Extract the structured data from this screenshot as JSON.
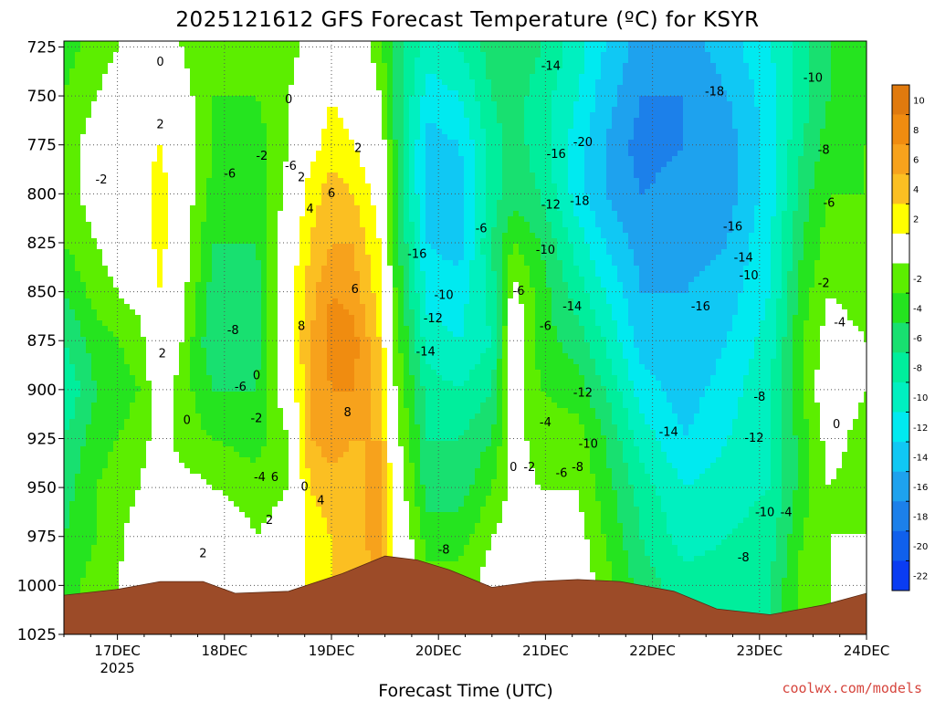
{
  "chart_data": {
    "type": "heatmap",
    "title": "2025121612 GFS Forecast Temperature (ºC) for KSYR",
    "xlabel": "Forecast Time (UTC)",
    "ylabel": "",
    "credit": "coolwx.com/models",
    "y_ticks": [
      "725",
      "750",
      "775",
      "800",
      "825",
      "850",
      "875",
      "900",
      "925",
      "950",
      "975",
      "1000",
      "1025"
    ],
    "y_values": [
      725,
      750,
      775,
      800,
      825,
      850,
      875,
      900,
      925,
      950,
      975,
      1000,
      1025
    ],
    "ylim": [
      1025,
      722
    ],
    "x_ticks": [
      "17DEC",
      "18DEC",
      "19DEC",
      "20DEC",
      "21DEC",
      "22DEC",
      "23DEC",
      "24DEC"
    ],
    "x_values": [
      0.5,
      1.5,
      2.5,
      3.5,
      4.5,
      5.5,
      6.5,
      7.5
    ],
    "x_year_label": "2025",
    "xlim": [
      0,
      7.5
    ],
    "colorbar": {
      "tick_labels": [
        "10",
        "8",
        "6",
        "4",
        "2",
        "-2",
        "-4",
        "-6",
        "-8",
        "-10",
        "-12",
        "-14",
        "-16",
        "-18",
        "-20",
        "-22"
      ],
      "tick_values": [
        10,
        8,
        6,
        4,
        2,
        -2,
        -4,
        -6,
        -8,
        -10,
        -12,
        -14,
        -16,
        -18,
        -20,
        -22
      ],
      "bands": [
        {
          "min": 10,
          "max": 12,
          "color": "#e07a0e"
        },
        {
          "min": 8,
          "max": 10,
          "color": "#f08c10"
        },
        {
          "min": 6,
          "max": 8,
          "color": "#f7a21c"
        },
        {
          "min": 4,
          "max": 6,
          "color": "#fbbf22"
        },
        {
          "min": 2,
          "max": 4,
          "color": "#ffff00"
        },
        {
          "min": -2,
          "max": 2,
          "color": "#ffffff"
        },
        {
          "min": -4,
          "max": -2,
          "color": "#5cee00"
        },
        {
          "min": -6,
          "max": -4,
          "color": "#25e41f"
        },
        {
          "min": -8,
          "max": -6,
          "color": "#18e070"
        },
        {
          "min": -10,
          "max": -8,
          "color": "#00ee9c"
        },
        {
          "min": -12,
          "max": -10,
          "color": "#00f0c0"
        },
        {
          "min": -14,
          "max": -12,
          "color": "#00eaf0"
        },
        {
          "min": -16,
          "max": -14,
          "color": "#10c8f4"
        },
        {
          "min": -18,
          "max": -16,
          "color": "#1ea2ee"
        },
        {
          "min": -20,
          "max": -18,
          "color": "#1c80ea"
        },
        {
          "min": -22,
          "max": -20,
          "color": "#1060ec"
        },
        {
          "min": -24,
          "max": -22,
          "color": "#0a3cf2"
        }
      ]
    },
    "temperature_profiles": [
      {
        "t": 0.0,
        "temps": [
          -5,
          -4,
          -3,
          -3,
          -4,
          -6,
          -8,
          -10,
          -8,
          -7,
          -6,
          -5
        ]
      },
      {
        "t": 0.3,
        "temps": [
          -3,
          -2,
          -1,
          -1,
          -2,
          -3,
          -5,
          -6,
          -5,
          -4,
          -4,
          -3
        ]
      },
      {
        "t": 0.7,
        "temps": [
          -1,
          0,
          1,
          1,
          0,
          -1,
          -3,
          -4,
          -3,
          -2,
          -1,
          -1
        ]
      },
      {
        "t": 0.9,
        "temps": [
          0,
          1,
          2,
          3,
          3,
          2,
          1,
          0,
          -1,
          0,
          1,
          0
        ]
      },
      {
        "t": 1.1,
        "temps": [
          -2,
          -1,
          0,
          0,
          -1,
          -1,
          -2,
          -3,
          -3,
          -1,
          2,
          0
        ]
      },
      {
        "t": 1.4,
        "temps": [
          -4,
          -4,
          -4,
          -5,
          -6,
          -7,
          -8,
          -6,
          -4,
          -2,
          0,
          0
        ]
      },
      {
        "t": 1.8,
        "temps": [
          -4,
          -4,
          -5,
          -6,
          -6,
          -7,
          -7,
          -6,
          -5,
          -3,
          -2,
          -1
        ]
      },
      {
        "t": 2.1,
        "temps": [
          -3,
          -2,
          -2,
          -1,
          0,
          1,
          1,
          0,
          -2,
          -2,
          -1,
          -1
        ]
      },
      {
        "t": 2.3,
        "temps": [
          -1,
          0,
          1,
          3,
          4,
          5,
          6,
          6,
          6,
          4,
          3,
          3
        ]
      },
      {
        "t": 2.5,
        "temps": [
          1,
          2,
          3,
          5,
          6,
          8,
          9,
          8,
          7,
          5,
          4,
          4
        ]
      },
      {
        "t": 2.7,
        "temps": [
          0,
          1,
          2,
          4,
          6,
          7,
          9,
          8,
          6,
          5,
          5,
          5
        ]
      },
      {
        "t": 2.95,
        "temps": [
          -3,
          -2,
          0,
          1,
          2,
          3,
          4,
          5,
          6,
          7,
          7,
          6
        ]
      },
      {
        "t": 3.1,
        "temps": [
          -7,
          -7,
          -6,
          -6,
          -5,
          -4,
          -3,
          -2,
          -1,
          0,
          1,
          1
        ]
      },
      {
        "t": 3.4,
        "temps": [
          -11,
          -13,
          -15,
          -15,
          -14,
          -13,
          -11,
          -9,
          -8,
          -7,
          -5,
          -3
        ]
      },
      {
        "t": 3.7,
        "temps": [
          -10,
          -12,
          -14,
          -15,
          -15,
          -13,
          -12,
          -10,
          -8,
          -7,
          -5,
          -3
        ]
      },
      {
        "t": 4.0,
        "temps": [
          -7,
          -8,
          -9,
          -9,
          -8,
          -9,
          -10,
          -8,
          -6,
          -4,
          -2,
          -1
        ]
      },
      {
        "t": 4.2,
        "temps": [
          -6,
          -7,
          -7,
          -7,
          -4,
          -1,
          0,
          0,
          -1,
          -1,
          -1,
          -1
        ]
      },
      {
        "t": 4.45,
        "temps": [
          -8,
          -9,
          -9,
          -8,
          -6,
          -5,
          -5,
          -4,
          -3,
          -2,
          -1,
          -1
        ]
      },
      {
        "t": 4.8,
        "temps": [
          -11,
          -12,
          -13,
          -13,
          -11,
          -9,
          -7,
          -5,
          -3,
          -2,
          -1,
          0
        ]
      },
      {
        "t": 5.05,
        "temps": [
          -14,
          -15,
          -16,
          -16,
          -14,
          -12,
          -10,
          -8,
          -6,
          -5,
          -4,
          -3
        ]
      },
      {
        "t": 5.4,
        "temps": [
          -17,
          -18,
          -19,
          -18,
          -17,
          -16,
          -15,
          -13,
          -11,
          -9,
          -8,
          -7
        ]
      },
      {
        "t": 5.8,
        "temps": [
          -17,
          -18,
          -18,
          -17,
          -17,
          -16,
          -16,
          -15,
          -14,
          -12,
          -11,
          -9
        ]
      },
      {
        "t": 6.2,
        "temps": [
          -15,
          -16,
          -17,
          -17,
          -16,
          -15,
          -14,
          -13,
          -12,
          -11,
          -10,
          -9
        ]
      },
      {
        "t": 6.6,
        "temps": [
          -12,
          -13,
          -13,
          -13,
          -12,
          -12,
          -11,
          -10,
          -10,
          -10,
          -9,
          -8
        ]
      },
      {
        "t": 6.9,
        "temps": [
          -9,
          -9,
          -8,
          -7,
          -6,
          -5,
          -4,
          -4,
          -5,
          -5,
          -4,
          -3
        ]
      },
      {
        "t": 7.15,
        "temps": [
          -6,
          -6,
          -5,
          -4,
          -3,
          -2,
          -1,
          0,
          -1,
          -2,
          -2,
          -2
        ]
      },
      {
        "t": 7.5,
        "temps": [
          -5,
          -5,
          -4,
          -4,
          -3,
          -3,
          -2,
          -2,
          -3,
          -3,
          -2,
          -1
        ]
      }
    ],
    "terrain_surface_hpa": [
      {
        "t": 0.0,
        "p": 1005
      },
      {
        "t": 0.5,
        "p": 1002
      },
      {
        "t": 0.9,
        "p": 998
      },
      {
        "t": 1.3,
        "p": 998
      },
      {
        "t": 1.6,
        "p": 1004
      },
      {
        "t": 2.1,
        "p": 1003
      },
      {
        "t": 2.6,
        "p": 994
      },
      {
        "t": 3.0,
        "p": 985
      },
      {
        "t": 3.3,
        "p": 987
      },
      {
        "t": 3.6,
        "p": 992
      },
      {
        "t": 4.0,
        "p": 1001
      },
      {
        "t": 4.4,
        "p": 998
      },
      {
        "t": 4.8,
        "p": 997
      },
      {
        "t": 5.2,
        "p": 998
      },
      {
        "t": 5.7,
        "p": 1003
      },
      {
        "t": 6.1,
        "p": 1012
      },
      {
        "t": 6.6,
        "p": 1015
      },
      {
        "t": 7.1,
        "p": 1010
      },
      {
        "t": 7.5,
        "p": 1004
      }
    ],
    "contour_labels": [
      {
        "text": "0",
        "t": 0.9,
        "p": 733
      },
      {
        "text": "2",
        "t": 0.9,
        "p": 765
      },
      {
        "text": "-2",
        "t": 0.35,
        "p": 793
      },
      {
        "text": "2",
        "t": 0.92,
        "p": 882
      },
      {
        "text": "0",
        "t": 1.15,
        "p": 916
      },
      {
        "text": "2",
        "t": 1.3,
        "p": 984
      },
      {
        "text": "-6",
        "t": 1.55,
        "p": 790
      },
      {
        "text": "-2",
        "t": 1.85,
        "p": 781
      },
      {
        "text": "0",
        "t": 2.1,
        "p": 752
      },
      {
        "text": "-6",
        "t": 2.12,
        "p": 786
      },
      {
        "text": "-8",
        "t": 1.58,
        "p": 870
      },
      {
        "text": "0",
        "t": 1.8,
        "p": 893
      },
      {
        "text": "-6",
        "t": 1.65,
        "p": 899
      },
      {
        "text": "-2",
        "t": 1.8,
        "p": 915
      },
      {
        "text": "-4",
        "t": 1.83,
        "p": 945
      },
      {
        "text": "6",
        "t": 1.97,
        "p": 945
      },
      {
        "text": "2",
        "t": 1.92,
        "p": 967
      },
      {
        "text": "2",
        "t": 2.22,
        "p": 792
      },
      {
        "text": "4",
        "t": 2.3,
        "p": 808
      },
      {
        "text": "6",
        "t": 2.5,
        "p": 800
      },
      {
        "text": "2",
        "t": 2.75,
        "p": 777
      },
      {
        "text": "8",
        "t": 2.22,
        "p": 868
      },
      {
        "text": "6",
        "t": 2.72,
        "p": 849
      },
      {
        "text": "8",
        "t": 2.65,
        "p": 912
      },
      {
        "text": "0",
        "t": 2.25,
        "p": 950
      },
      {
        "text": "4",
        "t": 2.4,
        "p": 957
      },
      {
        "text": "-16",
        "t": 3.3,
        "p": 831
      },
      {
        "text": "-10",
        "t": 3.55,
        "p": 852
      },
      {
        "text": "-12",
        "t": 3.45,
        "p": 864
      },
      {
        "text": "-14",
        "t": 3.38,
        "p": 881
      },
      {
        "text": "-8",
        "t": 3.55,
        "p": 982
      },
      {
        "text": "-6",
        "t": 3.9,
        "p": 818
      },
      {
        "text": "-6",
        "t": 4.25,
        "p": 850
      },
      {
        "text": "-6",
        "t": 4.5,
        "p": 868
      },
      {
        "text": "0",
        "t": 4.2,
        "p": 940
      },
      {
        "text": "-2",
        "t": 4.35,
        "p": 940
      },
      {
        "text": "-14",
        "t": 4.55,
        "p": 735
      },
      {
        "text": "-16",
        "t": 4.6,
        "p": 780
      },
      {
        "text": "-20",
        "t": 4.85,
        "p": 774
      },
      {
        "text": "-12",
        "t": 4.55,
        "p": 806
      },
      {
        "text": "-18",
        "t": 4.82,
        "p": 804
      },
      {
        "text": "-10",
        "t": 4.5,
        "p": 829
      },
      {
        "text": "-14",
        "t": 4.75,
        "p": 858
      },
      {
        "text": "-12",
        "t": 4.85,
        "p": 902
      },
      {
        "text": "-4",
        "t": 4.5,
        "p": 917
      },
      {
        "text": "-10",
        "t": 4.9,
        "p": 928
      },
      {
        "text": "-6",
        "t": 4.65,
        "p": 943
      },
      {
        "text": "-8",
        "t": 4.8,
        "p": 940
      },
      {
        "text": "-18",
        "t": 6.08,
        "p": 748
      },
      {
        "text": "-16",
        "t": 6.25,
        "p": 817
      },
      {
        "text": "-14",
        "t": 6.35,
        "p": 833
      },
      {
        "text": "-10",
        "t": 6.4,
        "p": 842
      },
      {
        "text": "-16",
        "t": 5.95,
        "p": 858
      },
      {
        "text": "-14",
        "t": 5.65,
        "p": 922
      },
      {
        "text": "-12",
        "t": 6.45,
        "p": 925
      },
      {
        "text": "-8",
        "t": 6.5,
        "p": 904
      },
      {
        "text": "-10",
        "t": 6.55,
        "p": 963
      },
      {
        "text": "-4",
        "t": 6.75,
        "p": 963
      },
      {
        "text": "-8",
        "t": 6.35,
        "p": 986
      },
      {
        "text": "-10",
        "t": 7.0,
        "p": 741
      },
      {
        "text": "-8",
        "t": 7.1,
        "p": 778
      },
      {
        "text": "-6",
        "t": 7.15,
        "p": 805
      },
      {
        "text": "-2",
        "t": 7.1,
        "p": 846
      },
      {
        "text": "-4",
        "t": 7.25,
        "p": 866
      },
      {
        "text": "0",
        "t": 7.22,
        "p": 918
      }
    ]
  }
}
